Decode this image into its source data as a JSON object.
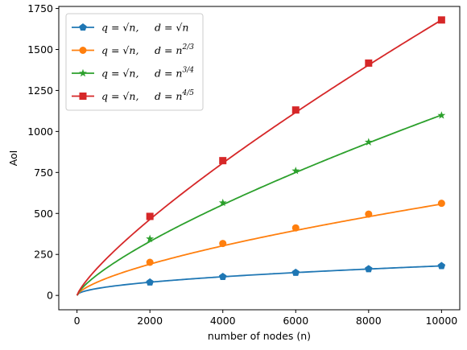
{
  "chart_data": {
    "type": "line",
    "xlabel": "number of nodes (n)",
    "ylabel": "AoI",
    "xlim": [
      -500,
      10500
    ],
    "ylim": [
      -87.5,
      1762.5
    ],
    "xticks": [
      0,
      2000,
      4000,
      6000,
      8000,
      10000
    ],
    "xtick_labels": [
      "0",
      "2000",
      "4000",
      "6000",
      "8000",
      "10000"
    ],
    "yticks": [
      0,
      250,
      500,
      750,
      1000,
      1250,
      1500,
      1750
    ],
    "ytick_labels": [
      "0",
      "250",
      "500",
      "750",
      "1000",
      "1250",
      "1500",
      "1750"
    ],
    "grid": false,
    "legend_position": "top-left",
    "marker_x": [
      2000,
      4000,
      6000,
      8000,
      10000
    ],
    "series": [
      {
        "name": "q = √n,    d = √n",
        "legend_q": "q = √n,",
        "legend_d": "d = √n",
        "exponent": 0.5,
        "coefficient": 1.8,
        "color": "#1f77b4",
        "marker": "pentagon",
        "values": [
          80,
          114,
          139,
          161,
          180
        ]
      },
      {
        "name": "q = √n,    d = n^(2/3)",
        "legend_q": "q = √n,",
        "legend_d": "d = n",
        "legend_d_sup": "2/3",
        "exponent": 0.6667,
        "coefficient": 1.2,
        "color": "#ff7f0e",
        "marker": "circle",
        "values": [
          202,
          317,
          412,
          496,
          562
        ]
      },
      {
        "name": "q = √n,    d = n^(3/4)",
        "legend_q": "q = √n,",
        "legend_d": "d = n",
        "legend_d_sup": "3/4",
        "exponent": 0.75,
        "coefficient": 1.1,
        "color": "#2ca02c",
        "marker": "star",
        "values": [
          345,
          565,
          760,
          935,
          1098
        ]
      },
      {
        "name": "q = √n,    d = n^(4/5)",
        "legend_q": "q = √n,",
        "legend_d": "d = n",
        "legend_d_sup": "4/5",
        "exponent": 0.8,
        "coefficient": 1.06,
        "color": "#d62728",
        "marker": "square",
        "values": [
          482,
          822,
          1131,
          1417,
          1680
        ]
      }
    ]
  }
}
